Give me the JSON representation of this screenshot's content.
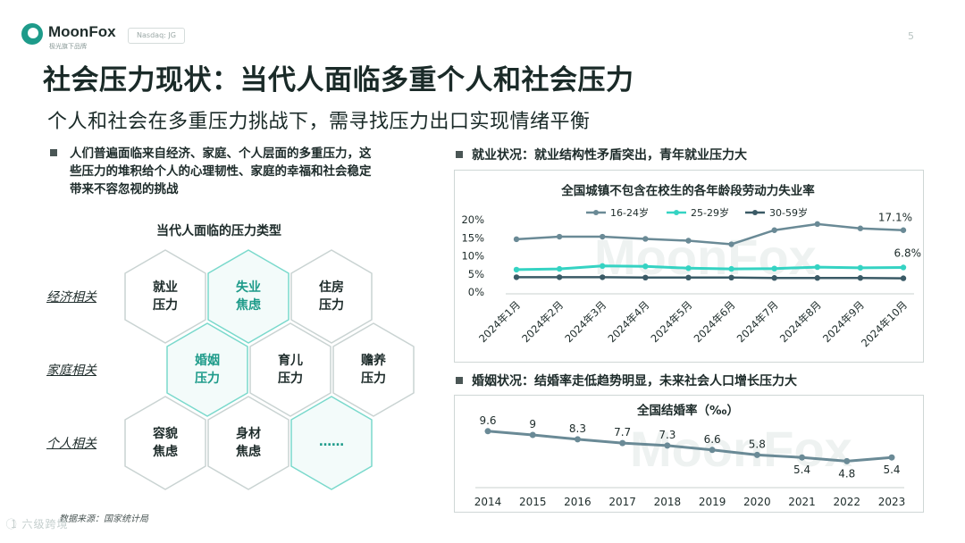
{
  "header": {
    "brand": "MoonFox",
    "brand_sub": "极光旗下品牌",
    "badge": "Nasdaq: JG",
    "page_number": "5",
    "title": "社会压力现状：当代人面临多重个人和社会压力",
    "subtitle": "个人和社会在多重压力挑战下，需寻找压力出口实现情绪平衡"
  },
  "left": {
    "bullet_lines": [
      "人们普遍面临来自经济、家庭、个人层面的多重压力，这",
      "些压力的堆积给个人的心理韧性、家庭的幸福和社会稳定",
      "带来不容忽视的挑战"
    ],
    "hex_title": "当代人面临的压力类型",
    "rows": [
      "经济相关",
      "家庭相关",
      "个人相关"
    ],
    "hexes": [
      {
        "line1": "就业",
        "line2": "压力",
        "highlight": false
      },
      {
        "line1": "失业",
        "line2": "焦虑",
        "highlight": true
      },
      {
        "line1": "住房",
        "line2": "压力",
        "highlight": false
      },
      {
        "line1": "婚姻",
        "line2": "压力",
        "highlight": true
      },
      {
        "line1": "育儿",
        "line2": "压力",
        "highlight": false
      },
      {
        "line1": "赡养",
        "line2": "压力",
        "highlight": false
      },
      {
        "line1": "容貌",
        "line2": "焦虑",
        "highlight": false
      },
      {
        "line1": "身材",
        "line2": "焦虑",
        "highlight": false
      },
      {
        "line1": "……",
        "line2": "",
        "highlight": true
      }
    ],
    "source": "数据来源：国家统计局"
  },
  "right": {
    "employment_title": "就业状况：就业结构性矛盾突出，青年就业压力大",
    "marriage_title": "婚姻状况：结婚率走低趋势明显，未来社会人口增长压力大",
    "watermark": "MoonFox"
  },
  "footer": {
    "mark": "1⃝ 六级跨境"
  },
  "colors": {
    "teal": "#1e9b8a",
    "series1": "#6a8a96",
    "series2": "#35d3c3",
    "series3": "#3a5a66"
  },
  "chart_data": [
    {
      "type": "line",
      "title": "全国城镇不包含在校生的各年龄段劳动力失业率",
      "categories": [
        "2024年1月",
        "2024年2月",
        "2024年3月",
        "2024年4月",
        "2024年5月",
        "2024年6月",
        "2024年7月",
        "2024年8月",
        "2024年9月",
        "2024年10月"
      ],
      "series": [
        {
          "name": "16-24岁",
          "values": [
            14.6,
            15.3,
            15.3,
            14.7,
            14.2,
            13.2,
            17.1,
            18.8,
            17.6,
            17.1
          ]
        },
        {
          "name": "25-29岁",
          "values": [
            6.2,
            6.4,
            7.2,
            7.1,
            6.6,
            6.4,
            6.5,
            6.9,
            6.7,
            6.8
          ]
        },
        {
          "name": "30-59岁",
          "values": [
            4.1,
            4.1,
            4.1,
            4.0,
            4.0,
            4.0,
            3.9,
            3.9,
            3.9,
            3.8
          ]
        }
      ],
      "yticks": [
        "0%",
        "5%",
        "10%",
        "15%",
        "20%"
      ],
      "ylim": [
        0,
        20
      ],
      "end_labels": [
        "17.1%",
        "6.8%"
      ]
    },
    {
      "type": "line",
      "title": "全国结婚率（‰）",
      "categories": [
        "2014",
        "2015",
        "2016",
        "2017",
        "2018",
        "2019",
        "2020",
        "2021",
        "2022",
        "2023"
      ],
      "values": [
        9.6,
        9,
        8.3,
        7.7,
        7.3,
        6.6,
        5.8,
        5.4,
        4.8,
        5.4
      ],
      "value_labels": [
        "9.6",
        "9",
        "8.3",
        "7.7",
        "7.3",
        "6.6",
        "5.8",
        "5.4",
        "4.8",
        "5.4"
      ],
      "ylim": [
        4,
        10
      ]
    }
  ]
}
